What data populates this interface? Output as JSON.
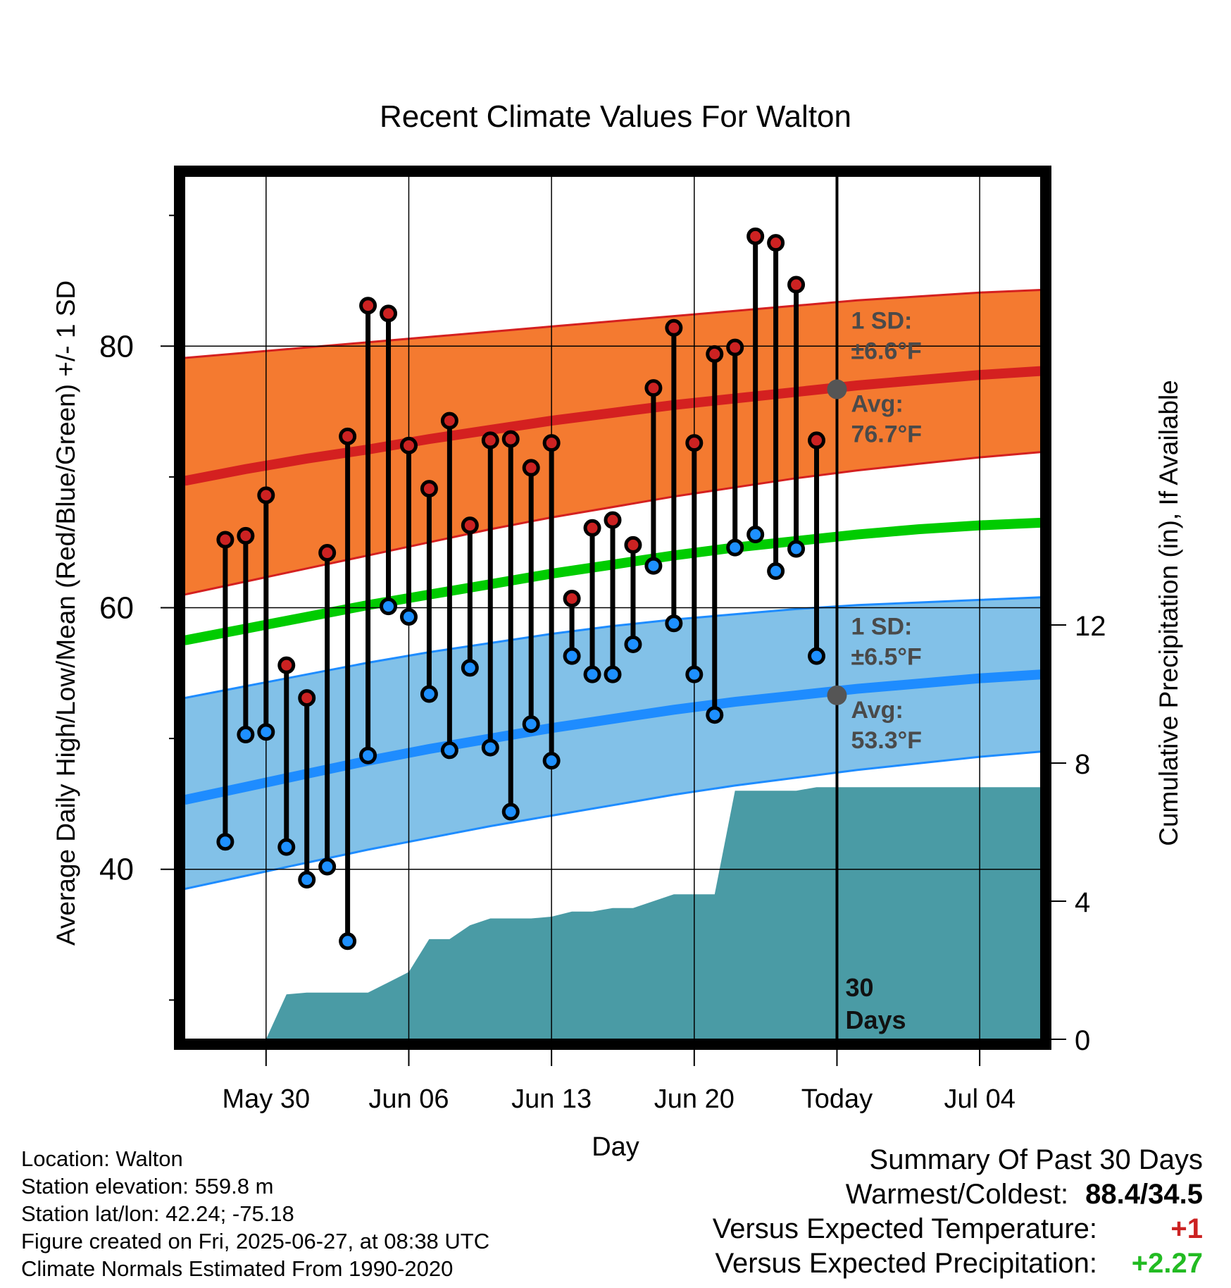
{
  "chart_data": {
    "type": "line",
    "title": "Recent Climate Values For Walton",
    "xlabel": "Day",
    "ylabel": "Average Daily High/Low/Mean (Red/Blue/Green) +/- 1 SD",
    "y2label": "Cumulative Precipitation (in), If Available",
    "ylim": [
      27,
      93
    ],
    "y2lim": [
      0,
      25
    ],
    "xlim": [
      "2025-05-26",
      "2025-07-07"
    ],
    "x_ticks": [
      {
        "date": "2025-05-30",
        "label": "May 30"
      },
      {
        "date": "2025-06-06",
        "label": "Jun 06"
      },
      {
        "date": "2025-06-13",
        "label": "Jun 13"
      },
      {
        "date": "2025-06-20",
        "label": "Jun 20"
      },
      {
        "date": "2025-06-27",
        "label": "Today"
      },
      {
        "date": "2025-07-04",
        "label": "Jul 04"
      }
    ],
    "y_ticks": [
      40,
      60,
      80
    ],
    "y2_ticks": [
      0,
      4,
      8,
      12
    ],
    "grid": true,
    "today": "2025-06-27",
    "period_label": "30 Days",
    "normals": {
      "dates": [
        "2025-05-26",
        "2025-05-29",
        "2025-06-01",
        "2025-06-04",
        "2025-06-07",
        "2025-06-10",
        "2025-06-13",
        "2025-06-16",
        "2025-06-19",
        "2025-06-22",
        "2025-06-25",
        "2025-06-28",
        "2025-07-01",
        "2025-07-04",
        "2025-07-07"
      ],
      "high_avg": [
        69.7,
        70.6,
        71.4,
        72.1,
        72.9,
        73.6,
        74.3,
        74.9,
        75.5,
        76.0,
        76.5,
        77.0,
        77.4,
        77.8,
        78.1
      ],
      "high_plus_sd": [
        79.1,
        79.5,
        79.9,
        80.3,
        80.7,
        81.1,
        81.5,
        81.9,
        82.3,
        82.7,
        83.1,
        83.5,
        83.8,
        84.1,
        84.3
      ],
      "high_minus_sd": [
        61.0,
        62.0,
        63.0,
        64.0,
        65.0,
        66.0,
        66.9,
        67.7,
        68.5,
        69.2,
        69.9,
        70.5,
        71.0,
        71.5,
        71.9
      ],
      "mean": [
        57.5,
        58.4,
        59.3,
        60.2,
        61.0,
        61.8,
        62.6,
        63.3,
        64.0,
        64.6,
        65.1,
        65.6,
        66.0,
        66.3,
        66.5
      ],
      "low_avg": [
        45.3,
        46.3,
        47.3,
        48.3,
        49.2,
        50.0,
        50.8,
        51.5,
        52.2,
        52.8,
        53.3,
        53.8,
        54.2,
        54.6,
        54.9
      ],
      "low_plus_sd": [
        53.1,
        54.0,
        54.9,
        55.8,
        56.6,
        57.3,
        58.0,
        58.6,
        59.1,
        59.5,
        59.9,
        60.2,
        60.4,
        60.6,
        60.8
      ],
      "low_minus_sd": [
        38.5,
        39.5,
        40.5,
        41.5,
        42.4,
        43.3,
        44.1,
        44.9,
        45.7,
        46.4,
        47.0,
        47.6,
        48.1,
        48.6,
        49.0
      ]
    },
    "series": [
      {
        "name": "High",
        "color": "#cc2222",
        "dates": [
          "2025-05-28",
          "2025-05-29",
          "2025-05-30",
          "2025-05-31",
          "2025-06-01",
          "2025-06-02",
          "2025-06-03",
          "2025-06-04",
          "2025-06-05",
          "2025-06-06",
          "2025-06-07",
          "2025-06-08",
          "2025-06-09",
          "2025-06-10",
          "2025-06-11",
          "2025-06-12",
          "2025-06-13",
          "2025-06-14",
          "2025-06-15",
          "2025-06-16",
          "2025-06-17",
          "2025-06-18",
          "2025-06-19",
          "2025-06-20",
          "2025-06-21",
          "2025-06-22",
          "2025-06-23",
          "2025-06-24",
          "2025-06-25",
          "2025-06-26"
        ],
        "values": [
          65.2,
          65.5,
          68.6,
          55.6,
          53.1,
          64.2,
          73.1,
          83.1,
          82.5,
          72.4,
          69.1,
          74.3,
          66.3,
          72.8,
          72.9,
          70.7,
          72.6,
          60.7,
          66.1,
          66.7,
          64.8,
          76.8,
          81.4,
          72.6,
          79.4,
          79.9,
          88.4,
          87.9,
          84.7,
          72.8
        ]
      },
      {
        "name": "Low",
        "color": "#1e90ff",
        "dates": [
          "2025-05-28",
          "2025-05-29",
          "2025-05-30",
          "2025-05-31",
          "2025-06-01",
          "2025-06-02",
          "2025-06-03",
          "2025-06-04",
          "2025-06-05",
          "2025-06-06",
          "2025-06-07",
          "2025-06-08",
          "2025-06-09",
          "2025-06-10",
          "2025-06-11",
          "2025-06-12",
          "2025-06-13",
          "2025-06-14",
          "2025-06-15",
          "2025-06-16",
          "2025-06-17",
          "2025-06-18",
          "2025-06-19",
          "2025-06-20",
          "2025-06-21",
          "2025-06-22",
          "2025-06-23",
          "2025-06-24",
          "2025-06-25",
          "2025-06-26"
        ],
        "values": [
          42.1,
          50.3,
          50.5,
          41.7,
          39.2,
          40.2,
          34.5,
          48.7,
          60.1,
          59.3,
          53.4,
          49.1,
          55.4,
          49.3,
          44.4,
          51.1,
          48.3,
          56.3,
          54.9,
          54.9,
          57.2,
          63.2,
          58.8,
          54.9,
          51.8,
          64.6,
          65.6,
          62.8,
          64.5,
          56.3
        ]
      }
    ],
    "precipitation": {
      "dates": [
        "2025-05-29",
        "2025-05-30",
        "2025-05-31",
        "2025-06-01",
        "2025-06-02",
        "2025-06-03",
        "2025-06-04",
        "2025-06-05",
        "2025-06-06",
        "2025-06-07",
        "2025-06-08",
        "2025-06-09",
        "2025-06-10",
        "2025-06-11",
        "2025-06-12",
        "2025-06-13",
        "2025-06-14",
        "2025-06-15",
        "2025-06-16",
        "2025-06-17",
        "2025-06-18",
        "2025-06-19",
        "2025-06-20",
        "2025-06-21",
        "2025-06-22",
        "2025-06-23",
        "2025-06-24",
        "2025-06-25",
        "2025-06-26",
        "2025-06-27",
        "2025-07-07"
      ],
      "values": [
        0.0,
        0.0,
        1.3,
        1.35,
        1.35,
        1.35,
        1.35,
        1.65,
        1.95,
        2.9,
        2.9,
        3.3,
        3.5,
        3.5,
        3.5,
        3.55,
        3.7,
        3.7,
        3.8,
        3.8,
        4.0,
        4.2,
        4.2,
        4.2,
        7.2,
        7.2,
        7.2,
        7.2,
        7.3,
        7.3,
        7.3
      ]
    },
    "annotations": {
      "high_sd": "1 SD:",
      "high_sd_val": "±6.6°F",
      "high_avg": "Avg:",
      "high_avg_val": "76.7°F",
      "low_sd": "1 SD:",
      "low_sd_val": "±6.5°F",
      "low_avg": "Avg:",
      "low_avg_val": "53.3°F",
      "today_high_avg": 76.7,
      "today_low_avg": 53.3
    },
    "colors": {
      "high_band": "#f47a30",
      "high_line": "#d42020",
      "mean_line": "#00cc00",
      "low_band": "#82c1e8",
      "low_line": "#1e8cff",
      "precip": "#4a9ba5",
      "high_dot": "#cc2222",
      "low_dot": "#1e90ff",
      "today_dot": "#555555",
      "annotation_text": "#4a4a4a"
    }
  },
  "info": {
    "location": "Location: Walton",
    "elevation": "Station elevation: 559.8 m",
    "latlon": "Station lat/lon: 42.24; -75.18",
    "created": "Figure created on Fri, 2025-06-27, at 08:38 UTC",
    "normals": "Climate Normals Estimated From 1990-2020"
  },
  "summary": {
    "title": "Summary Of Past 30 Days",
    "warm_cold_label": "Warmest/Coldest:",
    "warm_cold_value": "88.4/34.5",
    "temp_label": "Versus Expected Temperature:",
    "temp_value": "+1",
    "temp_color": "#cc2222",
    "precip_label": "Versus Expected Precipitation:",
    "precip_value": "+2.27",
    "precip_color": "#22bb22"
  }
}
